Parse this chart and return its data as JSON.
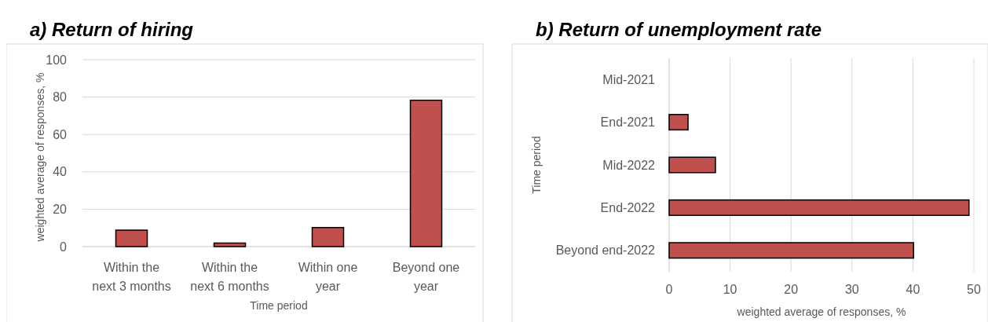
{
  "chart_data": [
    {
      "type": "bar",
      "title": "a)   Return of hiring",
      "xlabel": "Time period",
      "ylabel": "weighted average of responses, %",
      "categories": [
        "Within the next 3 months",
        "Within the next 6 months",
        "Within one year",
        "Beyond one year"
      ],
      "values": [
        8.8,
        1.9,
        10.2,
        78.3
      ],
      "color": "#c0504d",
      "ylim": [
        0,
        100
      ],
      "yticks": [
        0,
        20,
        40,
        60,
        80,
        100
      ],
      "grid": "y"
    },
    {
      "type": "bar",
      "orientation": "horizontal",
      "title": "b)   Return of unemployment rate",
      "xlabel": "weighted average of responses, %",
      "ylabel": "Time period",
      "categories": [
        "Mid-2021",
        "End-2021",
        "Mid-2022",
        "End-2022",
        "Beyond end-2022"
      ],
      "values": [
        0,
        3.1,
        7.6,
        49.2,
        40.1
      ],
      "color": "#c0504d",
      "xlim": [
        0,
        50
      ],
      "xticks": [
        0,
        10,
        20,
        30,
        40,
        50
      ],
      "grid": "x"
    }
  ]
}
